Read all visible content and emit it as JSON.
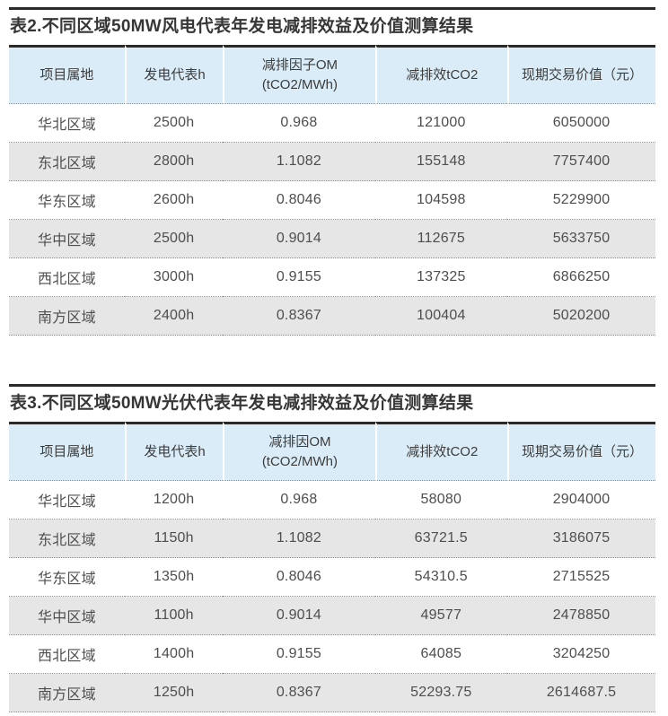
{
  "colors": {
    "header_bg": "#d9ecf7",
    "alt_row_bg": "#e6e6e6",
    "dark_rule": "#2a2a2a",
    "dotted_rule": "#8f8f8f",
    "title_text": "#363636",
    "cell_text": "#4e4e4e"
  },
  "chart_data": [
    {
      "type": "table",
      "title": "表2.不同区域50MW风电代表年发电减排效益及价值测算结果",
      "columns": [
        "项目属地",
        "发电代表h",
        "减排因子OM\n(tCO2/MWh)",
        "减排效tCO2",
        "现期交易价值（元）"
      ],
      "rows": [
        [
          "华北区域",
          "2500h",
          "0.968",
          "121000",
          "6050000"
        ],
        [
          "东北区域",
          "2800h",
          "1.1082",
          "155148",
          "7757400"
        ],
        [
          "华东区域",
          "2600h",
          "0.8046",
          "104598",
          "5229900"
        ],
        [
          "华中区域",
          "2500h",
          "0.9014",
          "112675",
          "5633750"
        ],
        [
          "西北区域",
          "3000h",
          "0.9155",
          "137325",
          "6866250"
        ],
        [
          "南方区域",
          "2400h",
          "0.8367",
          "100404",
          "5020200"
        ]
      ]
    },
    {
      "type": "table",
      "title": "表3.不同区域50MW光伏代表年发电减排效益及价值测算结果",
      "columns": [
        "项目属地",
        "发电代表h",
        "减排因OM\n(tCO2/MWh)",
        "减排效tCO2",
        "现期交易价值（元）"
      ],
      "rows": [
        [
          "华北区域",
          "1200h",
          "0.968",
          "58080",
          "2904000"
        ],
        [
          "东北区域",
          "1150h",
          "1.1082",
          "63721.5",
          "3186075"
        ],
        [
          "华东区域",
          "1350h",
          "0.8046",
          "54310.5",
          "2715525"
        ],
        [
          "华中区域",
          "1100h",
          "0.9014",
          "49577",
          "2478850"
        ],
        [
          "西北区域",
          "1400h",
          "0.9155",
          "64085",
          "3204250"
        ],
        [
          "南方区域",
          "1250h",
          "0.8367",
          "52293.75",
          "2614687.5"
        ]
      ]
    }
  ]
}
